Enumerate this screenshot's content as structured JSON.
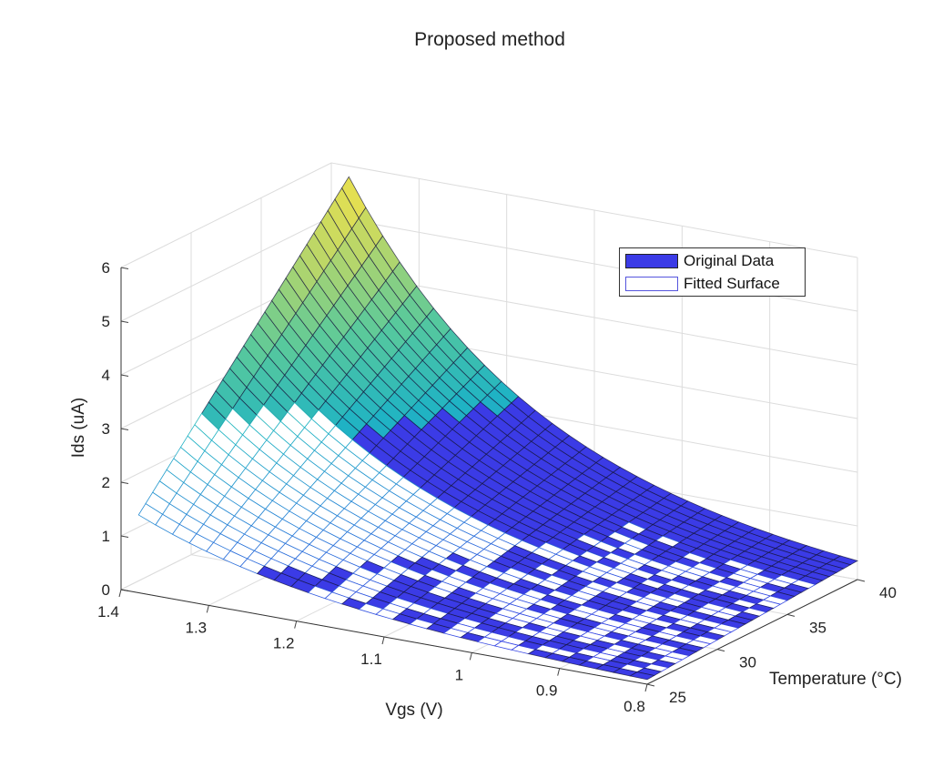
{
  "chart_data": {
    "type": "surface",
    "title": "Proposed method",
    "xlabel": "Vgs (V)",
    "ylabel": "Temperature (°C)",
    "zlabel": "Ids (uA)",
    "x_ticks": [
      "1.4",
      "1.3",
      "1.2",
      "1.1",
      "1",
      "0.9",
      "0.8"
    ],
    "y_ticks": [
      "25",
      "30",
      "35",
      "40"
    ],
    "z_ticks": [
      "0",
      "1",
      "2",
      "3",
      "4",
      "5",
      "6"
    ],
    "xlim": [
      0.8,
      1.4
    ],
    "ylim": [
      25,
      40
    ],
    "zlim": [
      0,
      6
    ],
    "grid": true,
    "legend_position": "upper-right",
    "series": [
      {
        "name": "Original Data",
        "color": "#3b3be6"
      },
      {
        "name": "Fitted Surface",
        "color": "#4444dd"
      }
    ],
    "surface_model": {
      "description": "Ids approx exponential in Vgs and temperature",
      "vgs_range": [
        0.8,
        1.38
      ],
      "temp_range": [
        25,
        40
      ],
      "peak_ids": 5.8,
      "min_ids": 0.05
    },
    "colormap": [
      "#3b3be6",
      "#2a7fd8",
      "#1fb3c4",
      "#58c99c",
      "#b7d66a",
      "#f5e348"
    ]
  }
}
